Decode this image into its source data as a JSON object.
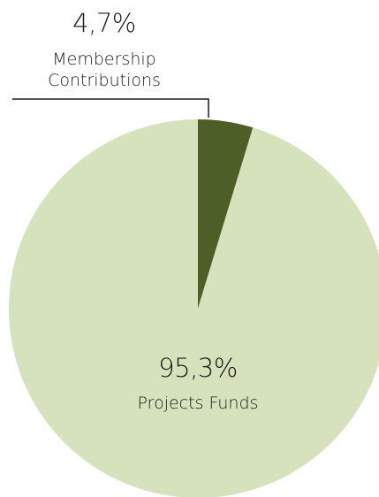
{
  "chart_data": {
    "type": "pie",
    "categories": [
      "Membership Contributions",
      "Projects Funds"
    ],
    "values": [
      4.7,
      95.3
    ],
    "value_labels": [
      "4,7%",
      "95,3%"
    ],
    "colors": [
      "#4d5e26",
      "#d6e2bc"
    ]
  }
}
